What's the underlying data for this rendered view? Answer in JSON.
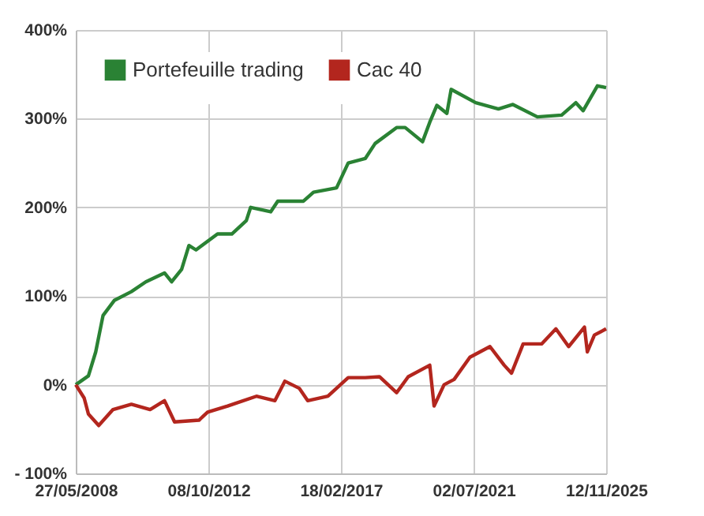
{
  "chart_data": {
    "type": "line",
    "xlim": [
      "2008-05-27",
      "2025-11-12"
    ],
    "xticks": [
      {
        "value": "2008-05-27",
        "label": "27/05/2008"
      },
      {
        "value": "2012-10-08",
        "label": "08/10/2012"
      },
      {
        "value": "2017-02-18",
        "label": "18/02/2017"
      },
      {
        "value": "2021-07-02",
        "label": "02/07/2021"
      },
      {
        "value": "2025-11-12",
        "label": "12/11/2025"
      }
    ],
    "ylim": [
      -100,
      400
    ],
    "yticks": [
      {
        "value": -100,
        "label": "- 100%"
      },
      {
        "value": 0,
        "label": "0%"
      },
      {
        "value": 100,
        "label": "100%"
      },
      {
        "value": 200,
        "label": "200%"
      },
      {
        "value": 300,
        "label": "300%"
      },
      {
        "value": 400,
        "label": "400%"
      }
    ],
    "grid": true,
    "legend": "top left",
    "marker": "none",
    "line_style": "solid",
    "series": [
      {
        "name": "Portefeuille trading",
        "color": "#2a8234",
        "x": [
          "2008-05-27",
          "2008-10-26",
          "2009-01-22",
          "2009-04-20",
          "2009-09-02",
          "2010-03-27",
          "2010-09-16",
          "2011-04-29",
          "2011-07-24",
          "2011-11-21",
          "2012-02-17",
          "2012-05-12",
          "2013-01-26",
          "2013-07-17",
          "2014-01-07",
          "2014-02-28",
          "2014-10-27",
          "2015-01-20",
          "2015-11-25",
          "2016-03-25",
          "2016-12-27",
          "2017-05-16",
          "2017-12-07",
          "2018-04-05",
          "2018-12-19",
          "2019-04-01",
          "2019-10-27",
          "2020-01-22",
          "2020-04-16",
          "2020-08-15",
          "2020-10-05",
          "2021-07-27",
          "2022-04-27",
          "2022-10-18",
          "2023-08-08",
          "2024-05-26",
          "2024-11-13",
          "2025-02-08",
          "2025-07-30",
          "2025-11-12"
        ],
        "values": [
          0,
          10,
          37,
          78,
          95,
          105,
          116,
          126,
          116,
          130,
          157,
          152,
          170,
          170,
          185,
          200,
          195,
          207,
          207,
          217,
          222,
          250,
          255,
          272,
          290,
          290,
          274,
          296,
          315,
          306,
          333,
          318,
          311,
          316,
          302,
          304,
          318,
          309,
          337,
          335
        ]
      },
      {
        "name": "Cac 40",
        "color": "#b3261e",
        "x": [
          "2008-05-27",
          "2008-09-05",
          "2008-10-26",
          "2009-02-27",
          "2009-08-18",
          "2010-03-27",
          "2010-11-07",
          "2011-04-29",
          "2011-08-28",
          "2012-06-17",
          "2012-09-28",
          "2013-05-27",
          "2014-05-08",
          "2014-12-17",
          "2015-04-16",
          "2015-10-05",
          "2016-01-15",
          "2016-09-14",
          "2016-12-27",
          "2017-05-16",
          "2017-12-07",
          "2018-05-27",
          "2018-12-19",
          "2019-05-08",
          "2020-01-22",
          "2020-03-14",
          "2020-07-12",
          "2020-11-10",
          "2021-05-19",
          "2022-01-15",
          "2022-07-05",
          "2022-10-01",
          "2023-02-18",
          "2023-09-28",
          "2024-03-18",
          "2024-08-18",
          "2025-02-24",
          "2025-03-31",
          "2025-06-24",
          "2025-11-12"
        ],
        "values": [
          0,
          -15,
          -33,
          -46,
          -28,
          -22,
          -28,
          -18,
          -42,
          -40,
          -31,
          -24,
          -13,
          -18,
          4,
          -4,
          -18,
          -13,
          -4,
          8,
          8,
          9,
          -9,
          9,
          22,
          -24,
          0,
          6,
          31,
          43,
          22,
          13,
          46,
          46,
          63,
          43,
          65,
          37,
          56,
          63
        ]
      }
    ]
  }
}
